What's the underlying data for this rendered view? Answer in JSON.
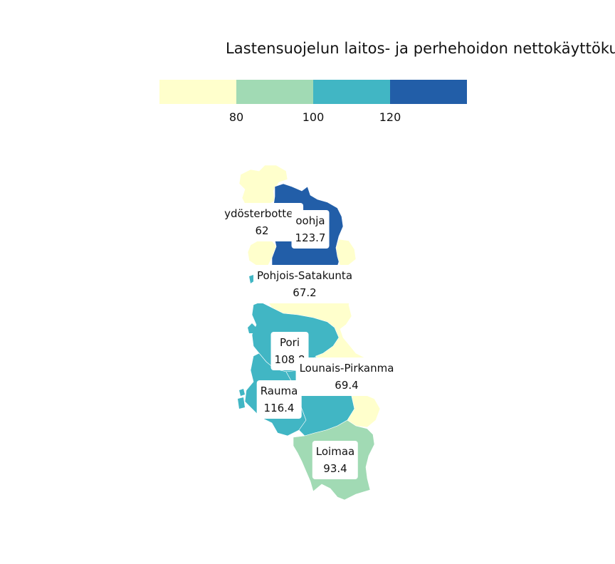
{
  "title": "Lastensuojelun laitos- ja perhehoidon nettokäyttökus",
  "colors": {
    "bin1": "#ffffcc",
    "bin2": "#a1dab4",
    "bin3": "#41b6c4",
    "bin4": "#225ea8"
  },
  "legend": {
    "ticks": [
      "80",
      "100",
      "120"
    ]
  },
  "regions": [
    {
      "id": "sydosterbotten",
      "name": "ydösterbotten",
      "value": "62"
    },
    {
      "id": "jarviseutu",
      "name": "oohja",
      "value": "123.7"
    },
    {
      "id": "pohjois-satakunta",
      "name": "Pohjois-Satakunta",
      "value": "67.2"
    },
    {
      "id": "pori",
      "name": "Pori",
      "value": "108.8"
    },
    {
      "id": "lounais-pirkanmaa",
      "name": "Lounais-Pirkanma",
      "value": "69.4"
    },
    {
      "id": "rauma",
      "name": "Rauma",
      "value": "116.4"
    },
    {
      "id": "loimaa",
      "name": "Loimaa",
      "value": "93.4"
    }
  ]
}
